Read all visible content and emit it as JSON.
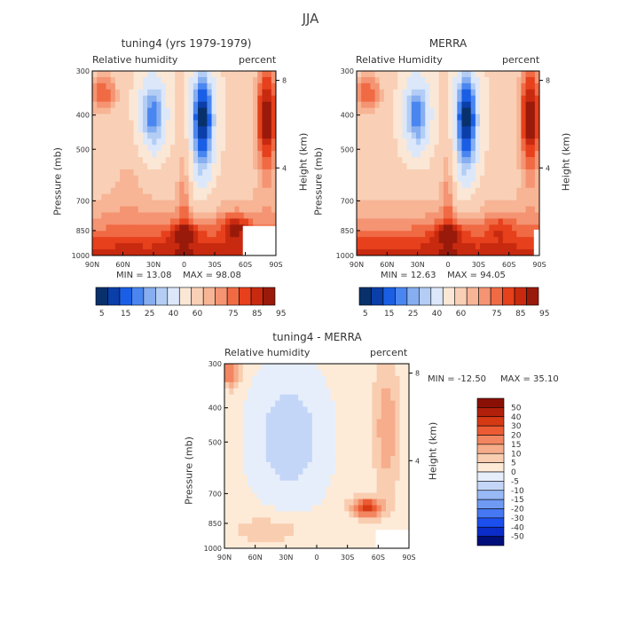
{
  "page": {
    "title": "JJA"
  },
  "colors": {
    "abs": [
      "#08306b",
      "#0a3ea8",
      "#1a5ee6",
      "#4a86f0",
      "#86aef0",
      "#b4cdf4",
      "#dce8fa",
      "#fbe7d6",
      "#f9d0b6",
      "#f7b596",
      "#f49473",
      "#f06a44",
      "#e6401c",
      "#c82a10",
      "#991a0a"
    ],
    "diff": [
      "#000f7a",
      "#0a2cc8",
      "#1b50ee",
      "#4578f2",
      "#6f9af4",
      "#98b8f6",
      "#c4d6f8",
      "#e6eefb",
      "#fdebd8",
      "#f9cdb0",
      "#f6ad8b",
      "#f28661",
      "#ec5b33",
      "#d63a14",
      "#b0200a",
      "#8a1006"
    ]
  },
  "chart_data": [
    {
      "type": "heatmap",
      "title": "tuning4 (yrs 1979-1979)",
      "left_label": "Relative humidity",
      "right_label": "percent",
      "xlabel": "",
      "ylabel": "Pressure (mb)",
      "y2label": "Height (km)",
      "x_ticks": [
        "90N",
        "60N",
        "30N",
        "0",
        "30S",
        "60S",
        "90S"
      ],
      "x_values": [
        90,
        60,
        30,
        0,
        -30,
        -60,
        -90
      ],
      "y_ticks": [
        300,
        400,
        500,
        700,
        850,
        1000
      ],
      "y2_ticks": [
        8,
        4
      ],
      "ylim": [
        300,
        1000
      ],
      "stats": {
        "min_label": "MIN =",
        "min": "13.08",
        "max_label": "MAX =",
        "max": "98.08"
      },
      "colorbar": {
        "labels": [
          "5",
          "15",
          "25",
          "40",
          "60",
          "75",
          "85",
          "95"
        ],
        "levels": [
          5,
          10,
          15,
          20,
          25,
          30,
          40,
          50,
          60,
          65,
          70,
          75,
          80,
          85,
          90,
          95
        ]
      }
    },
    {
      "type": "heatmap",
      "title": "MERRA",
      "left_label": "Relative Humidity",
      "right_label": "percent",
      "xlabel": "",
      "ylabel": "Pressure (mb)",
      "y2label": "Height (km)",
      "x_ticks": [
        "90N",
        "60N",
        "30N",
        "0",
        "30S",
        "60S",
        "90S"
      ],
      "x_values": [
        90,
        60,
        30,
        0,
        -30,
        -60,
        -90
      ],
      "y_ticks": [
        300,
        400,
        500,
        700,
        850,
        1000
      ],
      "y2_ticks": [
        8,
        4
      ],
      "ylim": [
        300,
        1000
      ],
      "stats": {
        "min_label": "MIN =",
        "min": "12.63",
        "max_label": "MAX =",
        "max": "94.05"
      },
      "colorbar": {
        "labels": [
          "5",
          "15",
          "25",
          "40",
          "60",
          "75",
          "85",
          "95"
        ],
        "levels": [
          5,
          10,
          15,
          20,
          25,
          30,
          40,
          50,
          60,
          65,
          70,
          75,
          80,
          85,
          90,
          95
        ]
      }
    },
    {
      "type": "heatmap",
      "title": "tuning4 - MERRA",
      "left_label": "Relative humidity",
      "right_label": "percent",
      "xlabel": "",
      "ylabel": "Pressure (mb)",
      "y2label": "Height (km)",
      "x_ticks": [
        "90N",
        "60N",
        "30N",
        "0",
        "30S",
        "60S",
        "90S"
      ],
      "x_values": [
        90,
        60,
        30,
        0,
        -30,
        -60,
        -90
      ],
      "y_ticks": [
        300,
        400,
        500,
        700,
        850,
        1000
      ],
      "y2_ticks": [
        8,
        4
      ],
      "ylim": [
        300,
        1000
      ],
      "stats": {
        "min_label": "MIN =",
        "min": "-12.50",
        "max_label": "MAX =",
        "max": "35.10"
      },
      "colorbar": {
        "labels": [
          "50",
          "40",
          "30",
          "20",
          "15",
          "10",
          "5",
          "0",
          "-5",
          "-10",
          "-15",
          "-20",
          "-30",
          "-40",
          "-50"
        ],
        "levels": [
          -50,
          -40,
          -30,
          -20,
          -15,
          -10,
          -5,
          0,
          5,
          10,
          15,
          20,
          30,
          40,
          50
        ]
      }
    }
  ]
}
